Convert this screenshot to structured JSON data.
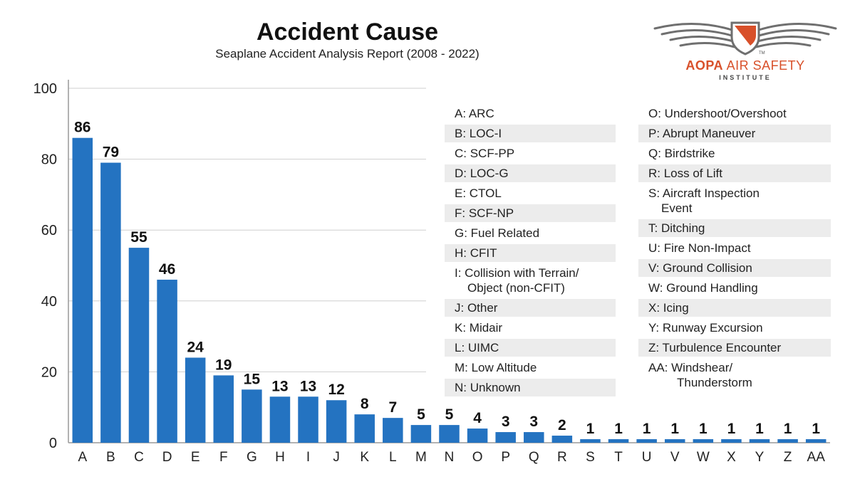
{
  "chart_data": {
    "type": "bar",
    "title": "Accident Cause",
    "subtitle": "Seaplane Accident Analysis Report (2008 - 2022)",
    "categories": [
      "A",
      "B",
      "C",
      "D",
      "E",
      "F",
      "G",
      "H",
      "I",
      "J",
      "K",
      "L",
      "M",
      "N",
      "O",
      "P",
      "Q",
      "R",
      "S",
      "T",
      "U",
      "V",
      "W",
      "X",
      "Y",
      "Z",
      "AA"
    ],
    "values": [
      86,
      79,
      55,
      46,
      24,
      19,
      15,
      13,
      13,
      12,
      8,
      7,
      5,
      5,
      4,
      3,
      3,
      2,
      1,
      1,
      1,
      1,
      1,
      1,
      1,
      1,
      1
    ],
    "ylim": [
      0,
      100
    ],
    "yticks": [
      0,
      20,
      40,
      60,
      80,
      100
    ],
    "xlabel": "",
    "ylabel": "",
    "grid": true,
    "bar_color": "#2473c1"
  },
  "legend": {
    "left": [
      "A: ARC",
      "B: LOC-I",
      "C: SCF-PP",
      "D: LOC-G",
      "E: CTOL",
      "F: SCF-NP",
      "G: Fuel Related",
      "H: CFIT",
      "I: Collision with Terrain/\nObject (non-CFIT)",
      "J: Other",
      "K: Midair",
      "L: UIMC",
      "M: Low Altitude",
      "N: Unknown"
    ],
    "right": [
      "O: Undershoot/Overshoot",
      "P: Abrupt Maneuver",
      "Q: Birdstrike",
      "R: Loss of Lift",
      "S: Aircraft Inspection\nEvent",
      "T: Ditching",
      "U: Fire Non-Impact",
      "V: Ground Collision",
      "W: Ground Handling",
      "X: Icing",
      "Y: Runway Excursion",
      "Z: Turbulence Encounter",
      "AA: Windshear/\nThunderstorm"
    ]
  },
  "logo": {
    "brand": "AOPA",
    "name": "AIR SAFETY",
    "tagline": "INSTITUTE",
    "tm": "TM",
    "accent": "#d8502a"
  }
}
